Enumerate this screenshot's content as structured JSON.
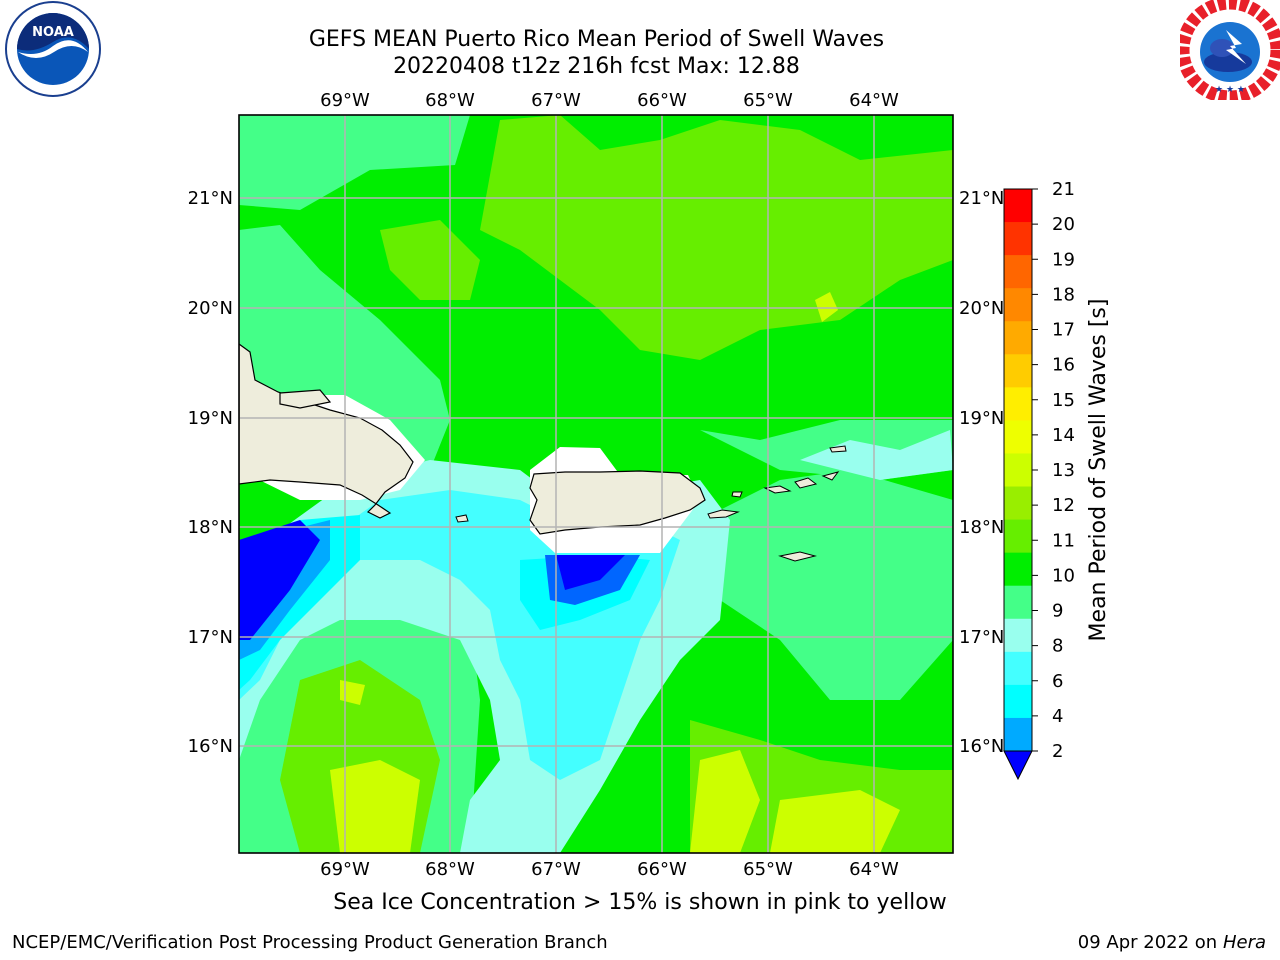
{
  "header": {
    "title_line1": "GEFS MEAN Puerto Rico Mean Period of Swell Waves",
    "title_line2": "20220408 t12z 216h fcst   Max: 12.88"
  },
  "logos": {
    "noaa": {
      "icon": "noaa-logo",
      "text": "NOAA",
      "ring_text": "NATIONAL OCEANIC AND ATMOSPHERIC ADMINISTRATION · U.S. DEPARTMENT OF COMMERCE"
    },
    "nws": {
      "icon": "nws-logo",
      "ring_text": "NATIONAL WEATHER SERVICE"
    }
  },
  "map": {
    "lon_labels": [
      "69°W",
      "68°W",
      "67°W",
      "66°W",
      "65°W",
      "64°W"
    ],
    "lat_labels": [
      "21°N",
      "20°N",
      "19°N",
      "18°N",
      "17°N",
      "16°N"
    ],
    "land_color": "#eeeddc",
    "mask_color": "#ffffff",
    "grid_color": "#b4b4b4"
  },
  "colorbar": {
    "label": "Mean Period of Swell Waves [s]",
    "ticks": [
      "21",
      "20",
      "19",
      "18",
      "17",
      "16",
      "15",
      "14",
      "13",
      "12",
      "11",
      "10",
      "9",
      "8",
      "6",
      "4",
      "2"
    ],
    "colors": [
      "#ff0000",
      "#ff3300",
      "#ff6600",
      "#ff8800",
      "#ffaa00",
      "#ffcc00",
      "#ffee00",
      "#eeff00",
      "#ccff00",
      "#99ee00",
      "#66ee00",
      "#00ee00",
      "#44ff88",
      "#99ffee",
      "#44ffff",
      "#00ffff",
      "#00aaff",
      "#0066ff"
    ],
    "under_color": "#0000ff"
  },
  "subtitle": "Sea Ice Concentration > 15% is shown in pink to yellow",
  "footer": {
    "left": "NCEP/EMC/Verification Post Processing Product Generation Branch",
    "right_date": "09 Apr 2022 on",
    "right_host": "Hera"
  }
}
